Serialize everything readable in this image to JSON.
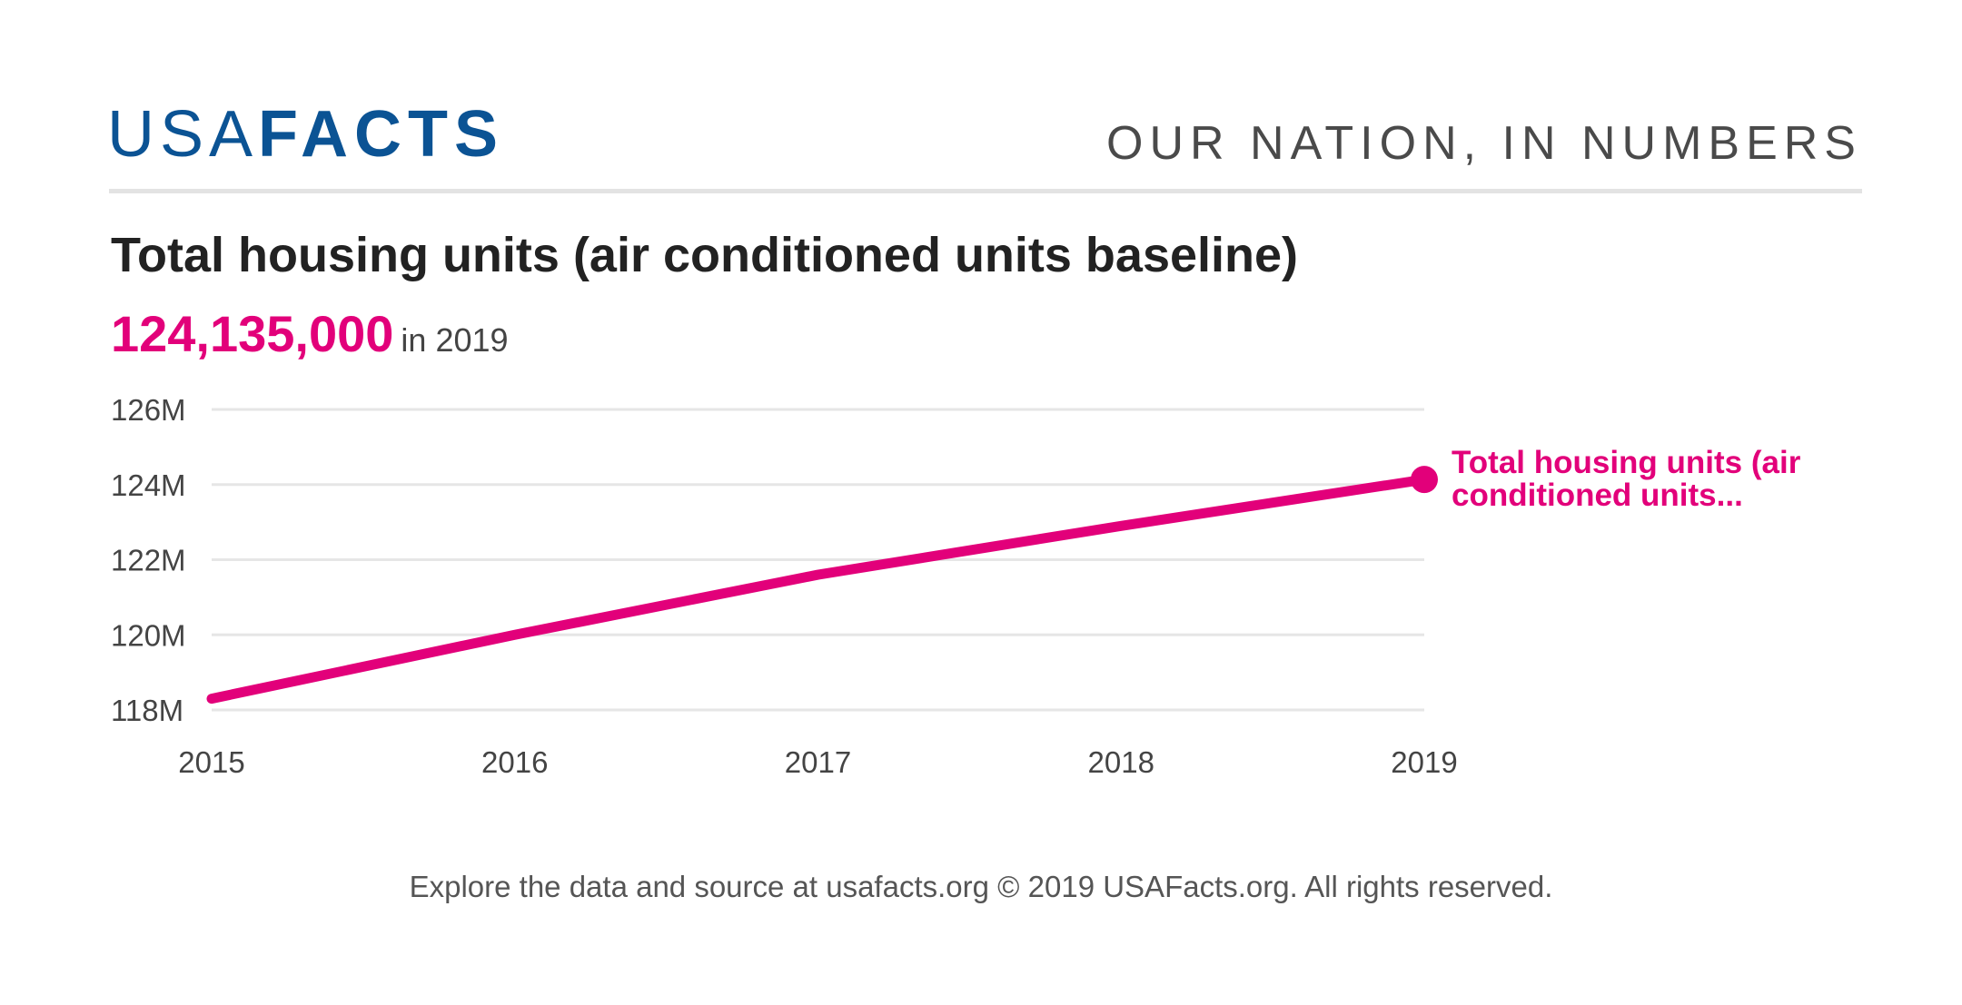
{
  "brand": {
    "logo_light": "USA",
    "logo_bold": "FACTS",
    "tagline": "OUR NATION, IN NUMBERS"
  },
  "header": {
    "title": "Total housing units (air conditioned units baseline)",
    "value": "124,135,000",
    "value_suffix": "in 2019"
  },
  "colors": {
    "accent": "#e2007a",
    "brand": "#0b5394",
    "grid": "#e6e6e6"
  },
  "chart_data": {
    "type": "line",
    "x": [
      2015,
      2016,
      2017,
      2018,
      2019
    ],
    "xticks": [
      "2015",
      "2016",
      "2017",
      "2018",
      "2019"
    ],
    "yticks": [
      "118M",
      "120M",
      "122M",
      "124M",
      "126M"
    ],
    "ylim": [
      118,
      126
    ],
    "yunit": "millions",
    "grid": true,
    "series": [
      {
        "name": "Total housing units (air conditioned units...",
        "values": [
          118.3,
          120.0,
          121.6,
          122.9,
          124.135
        ]
      }
    ]
  },
  "footer": {
    "text": "Explore the data and source at usafacts.org © 2019 USAFacts.org. All rights reserved."
  }
}
